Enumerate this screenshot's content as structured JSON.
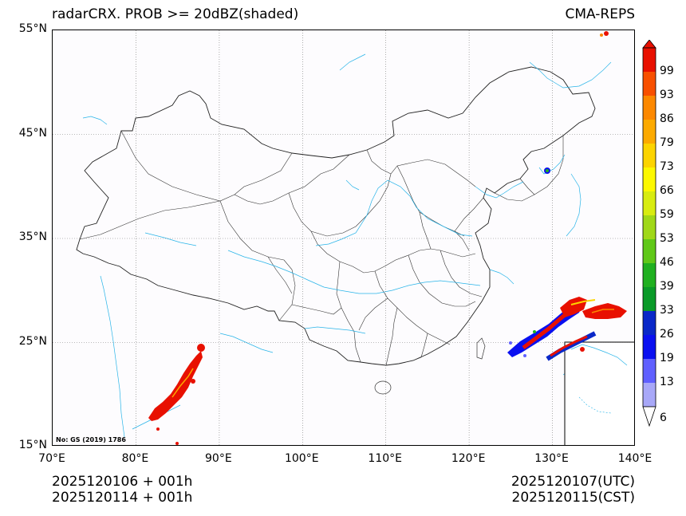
{
  "header": {
    "title_left": "radarCRX. PROB >= 20dBZ(shaded)",
    "title_right": "CMA-REPS"
  },
  "map": {
    "lon_range": [
      70,
      140
    ],
    "lat_range": [
      15,
      55
    ],
    "lon_ticks": [
      70,
      80,
      90,
      100,
      110,
      120,
      130,
      140
    ],
    "lat_ticks": [
      15,
      25,
      35,
      45,
      55
    ],
    "lon_labels": [
      "70°E",
      "80°E",
      "90°E",
      "100°E",
      "110°E",
      "120°E",
      "130°E",
      "140°E"
    ],
    "lat_labels": [
      "15°N",
      "25°N",
      "35°N",
      "45°N",
      "55°N"
    ],
    "map_note": "No: GS (2019) 1786"
  },
  "colorbar": {
    "labels": [
      "6",
      "13",
      "19",
      "26",
      "33",
      "39",
      "46",
      "53",
      "59",
      "66",
      "73",
      "79",
      "86",
      "93",
      "99"
    ],
    "colors": [
      "#a8a8f8",
      "#6060ff",
      "#0a10f0",
      "#0a28c8",
      "#0a9a28",
      "#20b020",
      "#60c818",
      "#a0d818",
      "#d8ec10",
      "#fcf800",
      "#fcd400",
      "#fcaa00",
      "#fc8800",
      "#f85000",
      "#e81000"
    ],
    "over_color": "#e81000",
    "under_color": "#ffffff"
  },
  "footer": {
    "init_time": "2025120106  +  001h",
    "init_time_cst": "2025120114  +  001h",
    "valid_utc": "2025120107(UTC)",
    "valid_cst": "2025120115(CST)"
  }
}
